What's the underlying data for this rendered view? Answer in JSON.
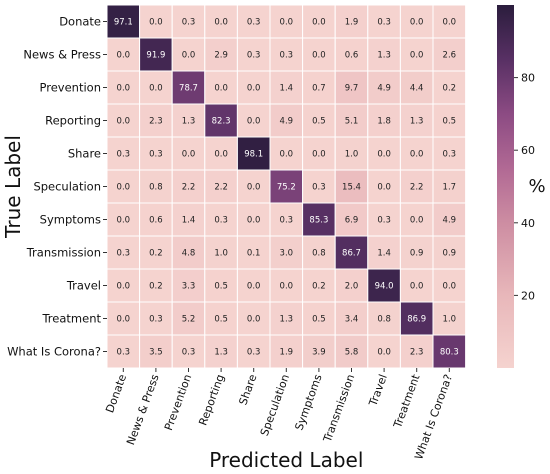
{
  "chart_data": {
    "type": "heatmap",
    "xlabel": "Predicted Label",
    "ylabel": "True Label",
    "categories": [
      "Donate",
      "News & Press",
      "Prevention",
      "Reporting",
      "Share",
      "Speculation",
      "Symptoms",
      "Transmission",
      "Travel",
      "Treatment",
      "What Is Corona?"
    ],
    "values": [
      [
        97.1,
        0.0,
        0.3,
        0.0,
        0.3,
        0.0,
        0.0,
        1.9,
        0.3,
        0.0,
        0.0
      ],
      [
        0.0,
        91.9,
        0.0,
        2.9,
        0.3,
        0.3,
        0.0,
        0.6,
        1.3,
        0.0,
        2.6
      ],
      [
        0.0,
        0.0,
        78.7,
        0.0,
        0.0,
        1.4,
        0.7,
        9.7,
        4.9,
        4.4,
        0.2
      ],
      [
        0.0,
        2.3,
        1.3,
        82.3,
        0.0,
        4.9,
        0.5,
        5.1,
        1.8,
        1.3,
        0.5
      ],
      [
        0.3,
        0.3,
        0.0,
        0.0,
        98.1,
        0.0,
        0.0,
        1.0,
        0.0,
        0.0,
        0.3
      ],
      [
        0.0,
        0.8,
        2.2,
        2.2,
        0.0,
        75.2,
        0.3,
        15.4,
        0.0,
        2.2,
        1.7
      ],
      [
        0.0,
        0.6,
        1.4,
        0.3,
        0.0,
        0.3,
        85.3,
        6.9,
        0.3,
        0.0,
        4.9
      ],
      [
        0.3,
        0.2,
        4.8,
        1.0,
        0.1,
        3.0,
        0.8,
        86.7,
        1.4,
        0.9,
        0.9
      ],
      [
        0.0,
        0.2,
        3.3,
        0.5,
        0.0,
        0.0,
        0.2,
        2.0,
        94.0,
        0.0,
        0.0
      ],
      [
        0.0,
        0.3,
        5.2,
        0.5,
        0.0,
        1.3,
        0.5,
        3.4,
        0.8,
        86.9,
        1.0
      ],
      [
        0.3,
        3.5,
        0.3,
        1.3,
        0.3,
        1.9,
        3.9,
        5.8,
        0.0,
        2.3,
        80.3
      ]
    ],
    "colorbar": {
      "label": "%",
      "ticks": [
        20,
        40,
        60,
        80
      ],
      "range": [
        0,
        100
      ],
      "color_low": "#f5d3cf",
      "color_high": "#2b1d3d"
    }
  }
}
